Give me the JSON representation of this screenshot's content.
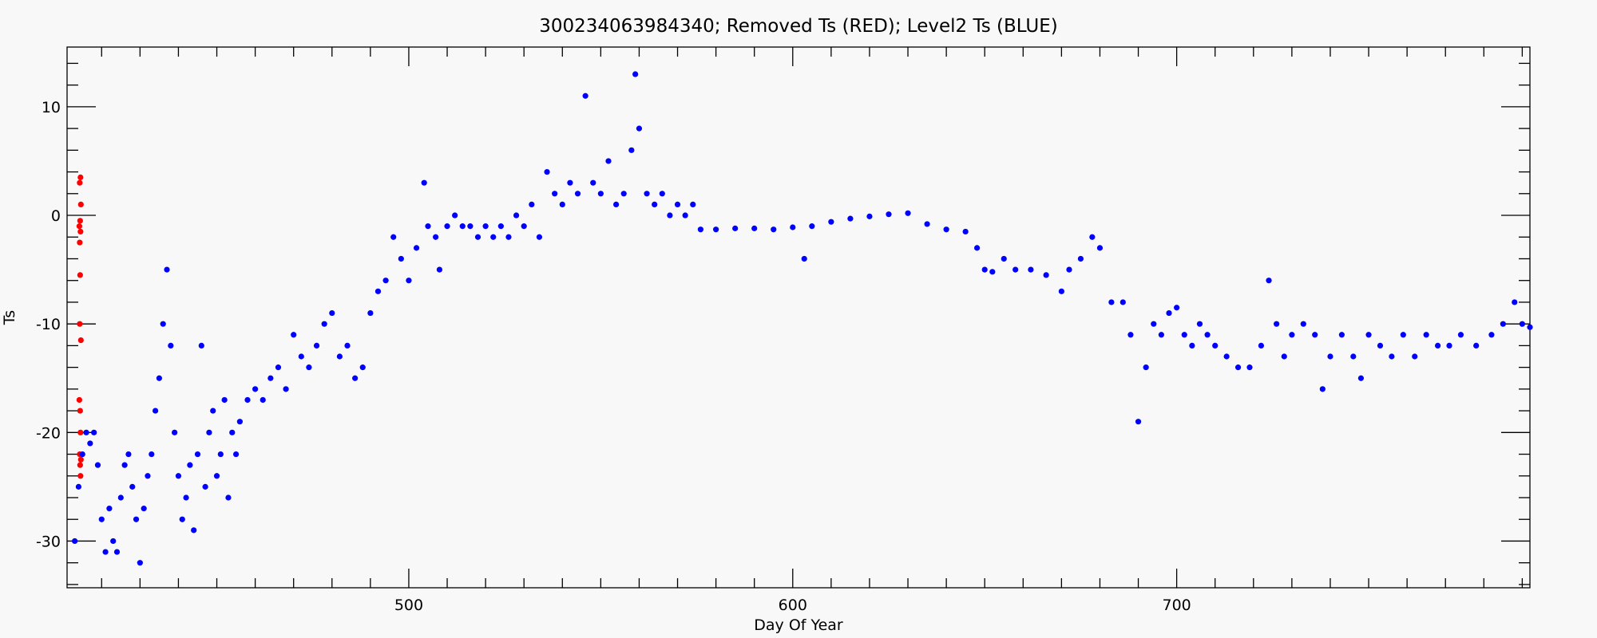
{
  "chart_data": {
    "type": "scatter",
    "title": "300234063984340; Removed Ts (RED); Level2 Ts (BLUE)",
    "x_label": "Day Of Year",
    "y_label": "Ts",
    "xlim": [
      411,
      792
    ],
    "ylim": [
      -34.3,
      15.5
    ],
    "xticks": [
      500,
      600,
      700
    ],
    "yticks": [
      -30,
      -20,
      -10,
      0,
      10
    ],
    "xminorticks": [
      420,
      430,
      440,
      450,
      460,
      470,
      480,
      490,
      510,
      520,
      530,
      540,
      550,
      560,
      570,
      580,
      590,
      610,
      620,
      630,
      640,
      650,
      660,
      670,
      680,
      690,
      710,
      720,
      730,
      740,
      750,
      760,
      770,
      780,
      790
    ],
    "yminorticks": [
      -34,
      -32,
      -28,
      -26,
      -24,
      -22,
      -18,
      -16,
      -14,
      -12,
      -8,
      -6,
      -4,
      -2,
      2,
      4,
      6,
      8,
      12,
      14
    ],
    "series": [
      {
        "color": "#ff0000",
        "x": [
          414.5,
          414.3,
          414.6,
          414.4,
          414.2,
          414.5,
          414.3,
          414.4,
          414.3,
          414.6,
          414.2,
          414.4,
          414.5,
          414.3,
          414.6,
          414.4,
          414.5
        ],
        "values": [
          3.5,
          3,
          1,
          -0.5,
          -1,
          -1.5,
          -2.5,
          -5.5,
          -10,
          -11.5,
          -17,
          -18,
          -20,
          -22,
          -22.5,
          -23,
          -24
        ]
      },
      {
        "color": "#0000ff",
        "x": [
          413,
          414,
          415,
          416,
          417,
          418,
          419,
          420,
          421,
          422,
          423,
          424,
          425,
          426,
          427,
          428,
          429,
          430,
          431,
          432,
          433,
          434,
          435,
          436,
          437,
          438,
          439,
          440,
          441,
          442,
          443,
          444,
          445,
          446,
          447,
          448,
          449,
          450,
          451,
          452,
          453,
          454,
          455,
          456,
          458,
          460,
          462,
          464,
          466,
          468,
          470,
          472,
          474,
          476,
          478,
          480,
          482,
          484,
          486,
          488,
          490,
          492,
          494,
          496,
          498,
          500,
          502,
          504,
          505,
          507,
          508,
          510,
          512,
          514,
          516,
          518,
          520,
          522,
          524,
          526,
          528,
          530,
          532,
          534,
          536,
          538,
          540,
          542,
          544,
          546,
          548,
          550,
          552,
          554,
          556,
          558,
          559,
          560,
          562,
          564,
          566,
          568,
          570,
          572,
          574,
          576,
          580,
          585,
          590,
          595,
          600,
          603,
          605,
          610,
          615,
          620,
          625,
          630,
          635,
          640,
          645,
          648,
          650,
          652,
          655,
          658,
          662,
          666,
          670,
          672,
          675,
          678,
          680,
          683,
          686,
          688,
          690,
          692,
          694,
          696,
          698,
          700,
          702,
          704,
          706,
          708,
          710,
          713,
          716,
          719,
          722,
          724,
          726,
          728,
          730,
          733,
          736,
          738,
          740,
          743,
          746,
          748,
          750,
          753,
          756,
          759,
          762,
          765,
          768,
          771,
          774,
          778,
          782,
          785,
          788,
          790,
          792
        ],
        "values": [
          -30,
          -25,
          -22,
          -20,
          -21,
          -20,
          -23,
          -28,
          -31,
          -27,
          -30,
          -31,
          -26,
          -23,
          -22,
          -25,
          -28,
          -32,
          -27,
          -24,
          -22,
          -18,
          -15,
          -10,
          -5,
          -12,
          -20,
          -24,
          -28,
          -26,
          -23,
          -29,
          -22,
          -12,
          -25,
          -20,
          -18,
          -24,
          -22,
          -17,
          -26,
          -20,
          -22,
          -19,
          -17,
          -16,
          -17,
          -15,
          -14,
          -16,
          -11,
          -13,
          -14,
          -12,
          -10,
          -9,
          -13,
          -12,
          -15,
          -14,
          -9,
          -7,
          -6,
          -2,
          -4,
          -6,
          -3,
          3,
          -1,
          -2,
          -5,
          -1,
          0,
          -1,
          -1,
          -2,
          -1,
          -2,
          -1,
          -2,
          0,
          -1,
          1,
          -2,
          4,
          2,
          1,
          3,
          2,
          11,
          3,
          2,
          5,
          1,
          2,
          6,
          13,
          8,
          2,
          1,
          2,
          0,
          1,
          0,
          1,
          -1.3,
          -1.3,
          -1.2,
          -1.2,
          -1.3,
          -1.1,
          -4,
          -1,
          -0.6,
          -0.3,
          -0.1,
          0.1,
          0.2,
          -0.8,
          -1.3,
          -1.5,
          -3,
          -5,
          -5.2,
          -4,
          -5,
          -5,
          -5.5,
          -7,
          -5,
          -4,
          -2,
          -3,
          -8,
          -8,
          -11,
          -19,
          -14,
          -10,
          -11,
          -9,
          -8.5,
          -11,
          -12,
          -10,
          -11,
          -12,
          -13,
          -14,
          -14,
          -12,
          -6,
          -10,
          -13,
          -11,
          -10,
          -11,
          -16,
          -13,
          -11,
          -13,
          -15,
          -11,
          -12,
          -13,
          -11,
          -13,
          -11,
          -12,
          -12,
          -11,
          -12,
          -11,
          -10,
          -8,
          -10,
          -10.3
        ]
      }
    ]
  }
}
